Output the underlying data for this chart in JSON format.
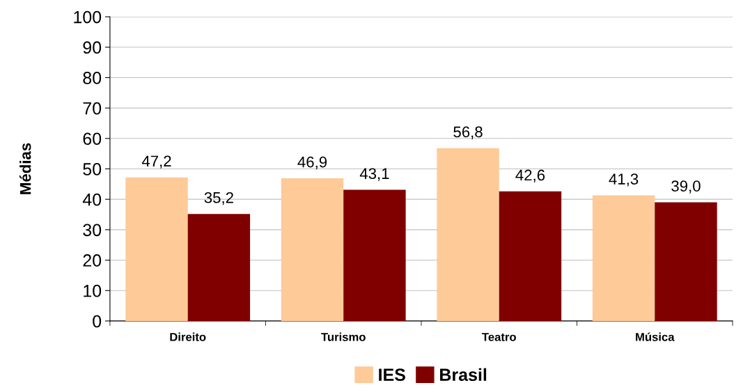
{
  "chart_data": {
    "type": "bar",
    "ylabel": "Médias",
    "categories": [
      "Direito",
      "Turismo",
      "Teatro",
      "Música"
    ],
    "series": [
      {
        "name": "IES",
        "color": "#fdca98",
        "values": [
          47.2,
          46.9,
          56.8,
          41.3
        ],
        "value_labels": [
          "47,2",
          "46,9",
          "56,8",
          "41,3"
        ]
      },
      {
        "name": "Brasil",
        "color": "#800000",
        "values": [
          35.2,
          43.1,
          42.6,
          39.0
        ],
        "value_labels": [
          "35,2",
          "43,1",
          "42,6",
          "39,0"
        ]
      }
    ],
    "ylim": [
      0,
      100
    ],
    "yticks": [
      0,
      10,
      20,
      30,
      40,
      50,
      60,
      70,
      80,
      90,
      100
    ],
    "grid": "y",
    "legend": "bottom"
  }
}
